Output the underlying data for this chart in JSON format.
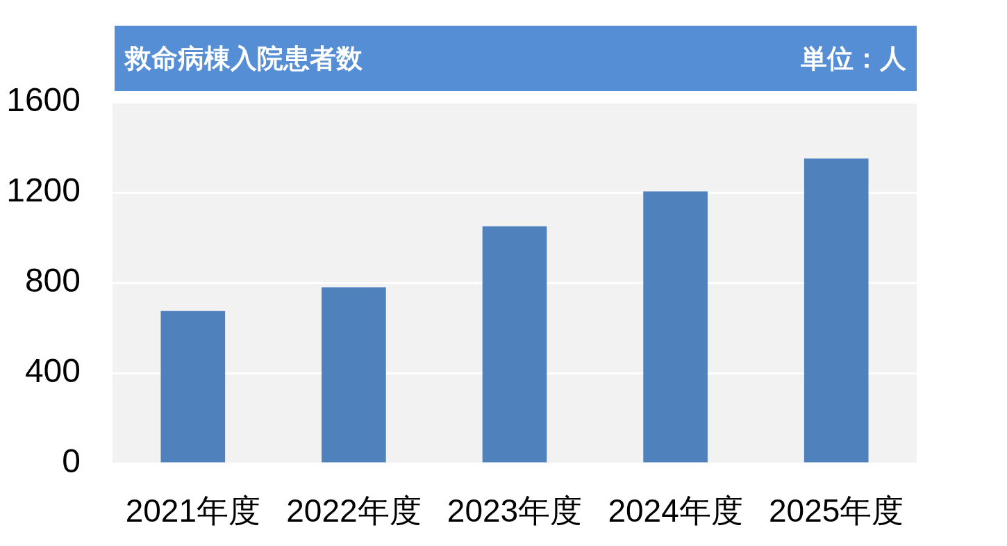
{
  "chart_data": {
    "type": "bar",
    "title": "救命病棟入院患者数",
    "annotations": [
      "単位：人"
    ],
    "categories": [
      "2021年度",
      "2022年度",
      "2023年度",
      "2024年度",
      "2025年度"
    ],
    "values": [
      675,
      780,
      1050,
      1205,
      1350
    ],
    "color": "#4f81bd",
    "ylim": [
      0,
      1600
    ],
    "yticks": [
      0,
      400,
      800,
      1200,
      1600
    ],
    "grid": "y"
  }
}
